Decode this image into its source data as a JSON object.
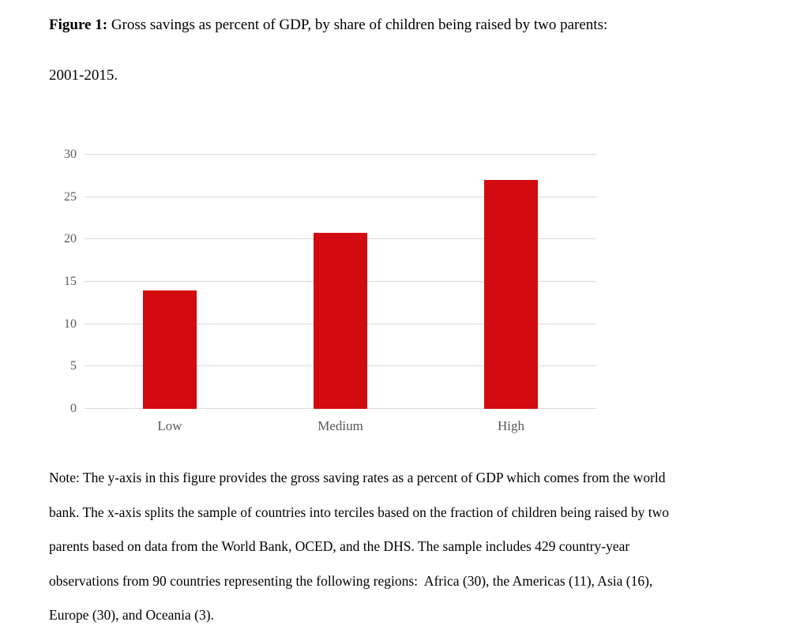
{
  "caption": {
    "label": "Figure 1:",
    "rest": " Gross savings as percent of GDP, by share of children being raised by two parents:",
    "line2": "2001-2015."
  },
  "chart_data": {
    "type": "bar",
    "title": "Gross savings as percent of GDP, by share of children being raised by two parents: 2001-2015",
    "categories": [
      "Low",
      "Medium",
      "High"
    ],
    "values": [
      14,
      20.8,
      27
    ],
    "xlabel": "",
    "ylabel": "",
    "ylim": [
      0,
      30
    ],
    "yticks": [
      0,
      5,
      10,
      15,
      20,
      25,
      30
    ],
    "grid": true,
    "legend": false,
    "bar_color": "#d20b10",
    "gridline_color": "#d9d9d9",
    "tick_label_color": "#595959"
  },
  "note": {
    "lines": [
      "Note: The y-axis in this figure provides the gross saving rates as a percent of GDP which comes from the world",
      "bank. The x-axis splits the sample of countries into terciles based on the fraction of children being raised by two",
      "parents based on data from the World Bank, OCED, and the DHS. The sample includes 429 country-year",
      "observations from 90 countries representing the following regions:  Africa (30), the Americas (11), Asia (16),",
      "Europe (30), and Oceania (3)."
    ]
  }
}
